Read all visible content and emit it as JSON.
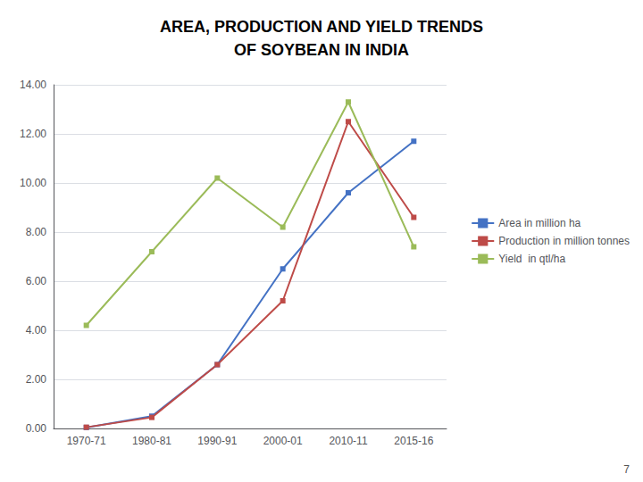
{
  "chart_data": {
    "type": "line",
    "title": "AREA, PRODUCTION AND YIELD TRENDS\nOF SOYBEAN IN INDIA",
    "categories": [
      "1970-71",
      "1980-81",
      "1990-91",
      "2000-01",
      "2010-11",
      "2015-16"
    ],
    "series": [
      {
        "name": "Area in million ha",
        "color": "#4472C4",
        "values": [
          0.04,
          0.5,
          2.6,
          6.5,
          9.6,
          11.7
        ]
      },
      {
        "name": "Production in million tonnes",
        "color": "#BE4B48",
        "values": [
          0.05,
          0.45,
          2.6,
          5.2,
          12.5,
          8.6
        ]
      },
      {
        "name": "Yield  in qtl/ha",
        "color": "#9BBB59",
        "values": [
          4.2,
          7.2,
          10.2,
          8.2,
          13.3,
          7.4
        ]
      }
    ],
    "ylim": [
      0,
      14.0
    ],
    "yticks": [
      {
        "value": 0.0,
        "label": "0.00"
      },
      {
        "value": 2.0,
        "label": "2.00"
      },
      {
        "value": 4.0,
        "label": "4.00"
      },
      {
        "value": 6.0,
        "label": "6.00"
      },
      {
        "value": 8.0,
        "label": "8.00"
      },
      {
        "value": 10.0,
        "label": "10.00"
      },
      {
        "value": 12.0,
        "label": "12.00"
      },
      {
        "value": 14.0,
        "label": "14.00"
      }
    ],
    "grid": true,
    "legend": "right",
    "marker": "square",
    "annotations": [
      "7"
    ]
  }
}
